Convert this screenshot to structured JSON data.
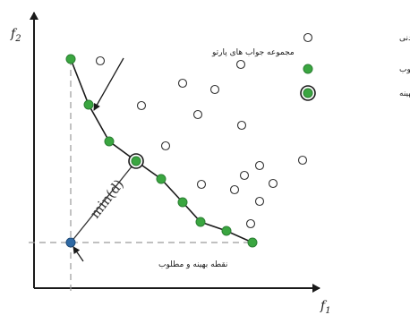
{
  "axes": {
    "x_label": "f",
    "x_sub": "1",
    "y_label": "f",
    "y_sub": "2"
  },
  "annotations": {
    "pareto_set": "مجموعه جواب های پارتو",
    "ideal_point": "نقطه بهینه و مطلوب",
    "distance": "min(d)"
  },
  "legend": [
    {
      "label": "راه حل های  شدنی",
      "marker": "feasible"
    },
    {
      "label": "راه حل های نامغلوب",
      "marker": "nondominated"
    },
    {
      "label": "راه حل بهینه",
      "marker": "optimal"
    }
  ],
  "colors": {
    "green": "#3aa640",
    "green_stroke": "#2c7f33",
    "blue": "#2f6aa5",
    "dash": "#9a9a9a",
    "line": "#1a1a1a"
  }
}
